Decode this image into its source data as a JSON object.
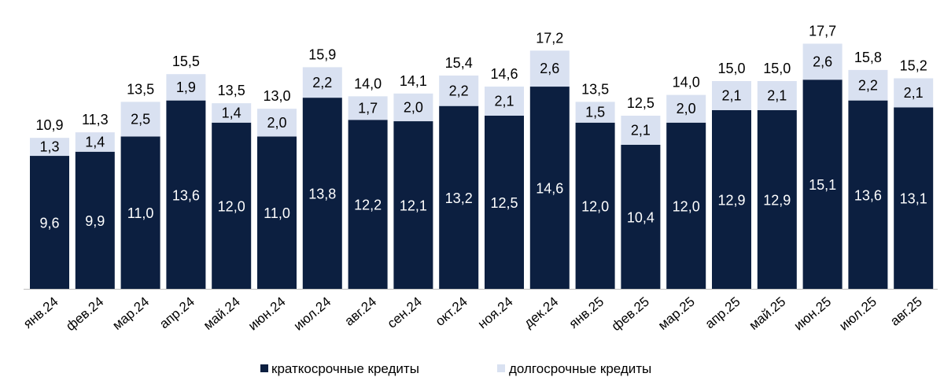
{
  "chart_data": {
    "type": "bar",
    "stacked": true,
    "title": "",
    "xlabel": "",
    "ylabel": "",
    "ylim": [
      0,
      20
    ],
    "grid": false,
    "legend_position": "bottom",
    "categories": [
      "янв.24",
      "фев.24",
      "мар.24",
      "апр.24",
      "май.24",
      "июн.24",
      "июл.24",
      "авг.24",
      "сен.24",
      "окт.24",
      "ноя.24",
      "дек.24",
      "янв.25",
      "фев.25",
      "мар.25",
      "апр.25",
      "май.25",
      "июн.25",
      "июл.25",
      "авг.25"
    ],
    "series": [
      {
        "name": "краткосрочные кредиты",
        "color": "#0c1f40",
        "label_color": "#ffffff",
        "values": [
          9.6,
          9.9,
          11.0,
          13.6,
          12.0,
          11.0,
          13.8,
          12.2,
          12.1,
          13.2,
          12.5,
          14.6,
          12.0,
          10.4,
          12.0,
          12.9,
          12.9,
          15.1,
          13.6,
          13.1
        ]
      },
      {
        "name": "долгосрочные кредиты",
        "color": "#d9e1f1",
        "label_color": "#000000",
        "values": [
          1.3,
          1.4,
          2.5,
          1.9,
          1.4,
          2.0,
          2.2,
          1.7,
          2.0,
          2.2,
          2.1,
          2.6,
          1.5,
          2.1,
          2.0,
          2.1,
          2.1,
          2.6,
          2.2,
          2.1
        ]
      }
    ],
    "totals": [
      10.9,
      11.3,
      13.5,
      15.5,
      13.5,
      13.0,
      15.9,
      14.0,
      14.1,
      15.4,
      14.6,
      17.2,
      13.5,
      12.5,
      14.0,
      15.0,
      15.0,
      17.7,
      15.8,
      15.2
    ]
  }
}
